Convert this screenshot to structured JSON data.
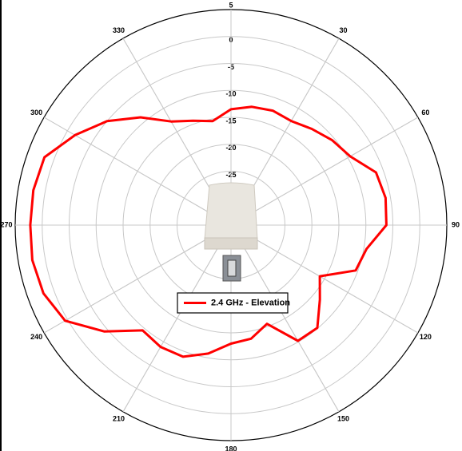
{
  "chart_data": {
    "type": "polar",
    "theta": [
      0,
      10,
      20,
      30,
      40,
      50,
      60,
      70,
      80,
      90,
      100,
      110,
      120,
      130,
      140,
      150,
      160,
      170,
      180,
      190,
      200,
      210,
      220,
      230,
      240,
      250,
      260,
      270,
      280,
      290,
      300,
      310,
      320,
      330,
      340,
      350
    ],
    "series": [
      {
        "name": "2.4 GHz - Elevation",
        "color": "#ff0000",
        "values": [
          -13.5,
          -12.7,
          -12.4,
          -12.7,
          -11.7,
          -10.5,
          -9.5,
          -6.4,
          -5.9,
          -6.2,
          -9.5,
          -10.4,
          -16,
          -13.5,
          -10.1,
          -10.2,
          -15.5,
          -13.6,
          -13,
          -10.8,
          -9,
          -8.9,
          -9.5,
          -4.3,
          0.5,
          2,
          2.4,
          2.2,
          2.2,
          1.8,
          -1.6,
          -5,
          -8.9,
          -12.8,
          -14.4,
          -15.4
        ]
      }
    ],
    "rlim": [
      -35,
      5
    ],
    "rticks": [
      -25,
      -20,
      -15,
      -10,
      -5,
      0,
      5
    ],
    "thetaticks": [
      30,
      60,
      90,
      120,
      150,
      180,
      210,
      240,
      270,
      300,
      330
    ]
  }
}
